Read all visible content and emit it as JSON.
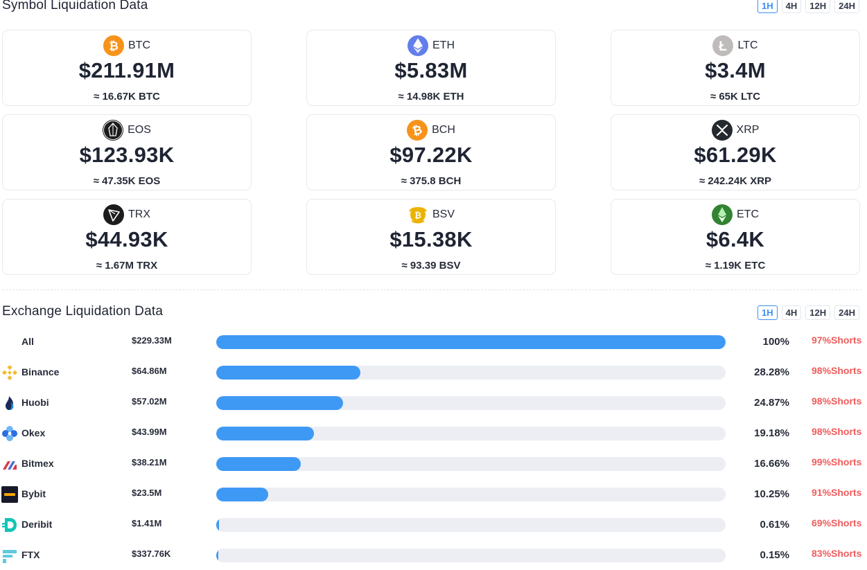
{
  "symbol_section": {
    "title": "Symbol Liquidation Data",
    "timeframes": [
      "1H",
      "4H",
      "12H",
      "24H"
    ],
    "active_timeframe": "1H",
    "cards": [
      {
        "symbol": "BTC",
        "amount": "$211.91M",
        "approx": "≈ 16.67K BTC",
        "icon": "btc-icon",
        "color": "#f7931a"
      },
      {
        "symbol": "ETH",
        "amount": "$5.83M",
        "approx": "≈ 14.98K ETH",
        "icon": "eth-icon",
        "color": "#627eea"
      },
      {
        "symbol": "LTC",
        "amount": "$3.4M",
        "approx": "≈ 65K LTC",
        "icon": "ltc-icon",
        "color": "#bfbbbb"
      },
      {
        "symbol": "EOS",
        "amount": "$123.93K",
        "approx": "≈ 47.35K EOS",
        "icon": "eos-icon",
        "color": "#1c1c1c"
      },
      {
        "symbol": "BCH",
        "amount": "$97.22K",
        "approx": "≈ 375.8 BCH",
        "icon": "bch-icon",
        "color": "#f7931a"
      },
      {
        "symbol": "XRP",
        "amount": "$61.29K",
        "approx": "≈ 242.24K XRP",
        "icon": "xrp-icon",
        "color": "#23292f"
      },
      {
        "symbol": "TRX",
        "amount": "$44.93K",
        "approx": "≈ 1.67M TRX",
        "icon": "trx-icon",
        "color": "#1c1c1c"
      },
      {
        "symbol": "BSV",
        "amount": "$15.38K",
        "approx": "≈ 93.39 BSV",
        "icon": "bsv-icon",
        "color": "#eab300"
      },
      {
        "symbol": "ETC",
        "amount": "$6.4K",
        "approx": "≈ 1.19K ETC",
        "icon": "etc-icon",
        "color": "#328332"
      }
    ]
  },
  "exchange_section": {
    "title": "Exchange Liquidation Data",
    "timeframes": [
      "1H",
      "4H",
      "12H",
      "24H"
    ],
    "active_timeframe": "1H",
    "rows": [
      {
        "name": "All",
        "amount": "$229.33M",
        "share": 100,
        "percent": "100%",
        "shorts": "97%Shorts",
        "icon": ""
      },
      {
        "name": "Binance",
        "amount": "$64.86M",
        "share": 28.28,
        "percent": "28.28%",
        "shorts": "98%Shorts",
        "icon": "binance-icon"
      },
      {
        "name": "Huobi",
        "amount": "$57.02M",
        "share": 24.87,
        "percent": "24.87%",
        "shorts": "98%Shorts",
        "icon": "huobi-icon"
      },
      {
        "name": "Okex",
        "amount": "$43.99M",
        "share": 19.18,
        "percent": "19.18%",
        "shorts": "98%Shorts",
        "icon": "okex-icon"
      },
      {
        "name": "Bitmex",
        "amount": "$38.21M",
        "share": 16.66,
        "percent": "16.66%",
        "shorts": "99%Shorts",
        "icon": "bitmex-icon"
      },
      {
        "name": "Bybit",
        "amount": "$23.5M",
        "share": 10.25,
        "percent": "10.25%",
        "shorts": "91%Shorts",
        "icon": "bybit-icon"
      },
      {
        "name": "Deribit",
        "amount": "$1.41M",
        "share": 0.61,
        "percent": "0.61%",
        "shorts": "69%Shorts",
        "icon": "deribit-icon"
      },
      {
        "name": "FTX",
        "amount": "$337.76K",
        "share": 0.15,
        "percent": "0.15%",
        "shorts": "83%Shorts",
        "icon": "ftx-icon"
      }
    ]
  },
  "colors": {
    "accent": "#3b8ff3",
    "bar_fill": "#3e99f5",
    "bar_track": "#eceef4",
    "shorts": "#f15b5b"
  }
}
